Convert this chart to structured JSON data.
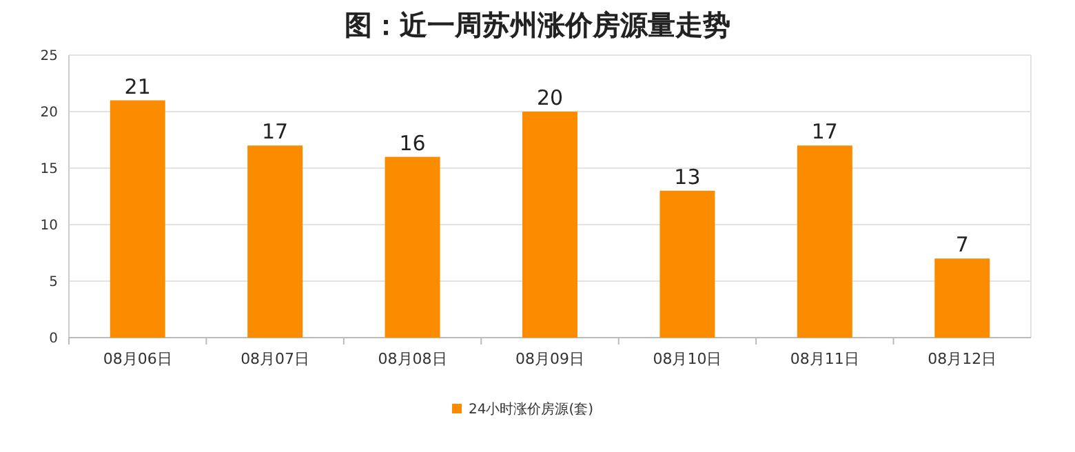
{
  "chart_data": {
    "type": "bar",
    "title": "图：近一周苏州涨价房源量走势",
    "categories": [
      "08月06日",
      "08月07日",
      "08月08日",
      "08月09日",
      "08月10日",
      "08月11日",
      "08月12日"
    ],
    "series": [
      {
        "name": "24小时涨价房源(套)",
        "color": "#fb8c00",
        "values": [
          21,
          17,
          16,
          20,
          13,
          17,
          7
        ]
      }
    ],
    "ylim": [
      0,
      25
    ],
    "yticks": [
      0,
      5,
      10,
      15,
      20,
      25
    ],
    "grid": "y",
    "data_labels": true,
    "legend": "bottom"
  }
}
